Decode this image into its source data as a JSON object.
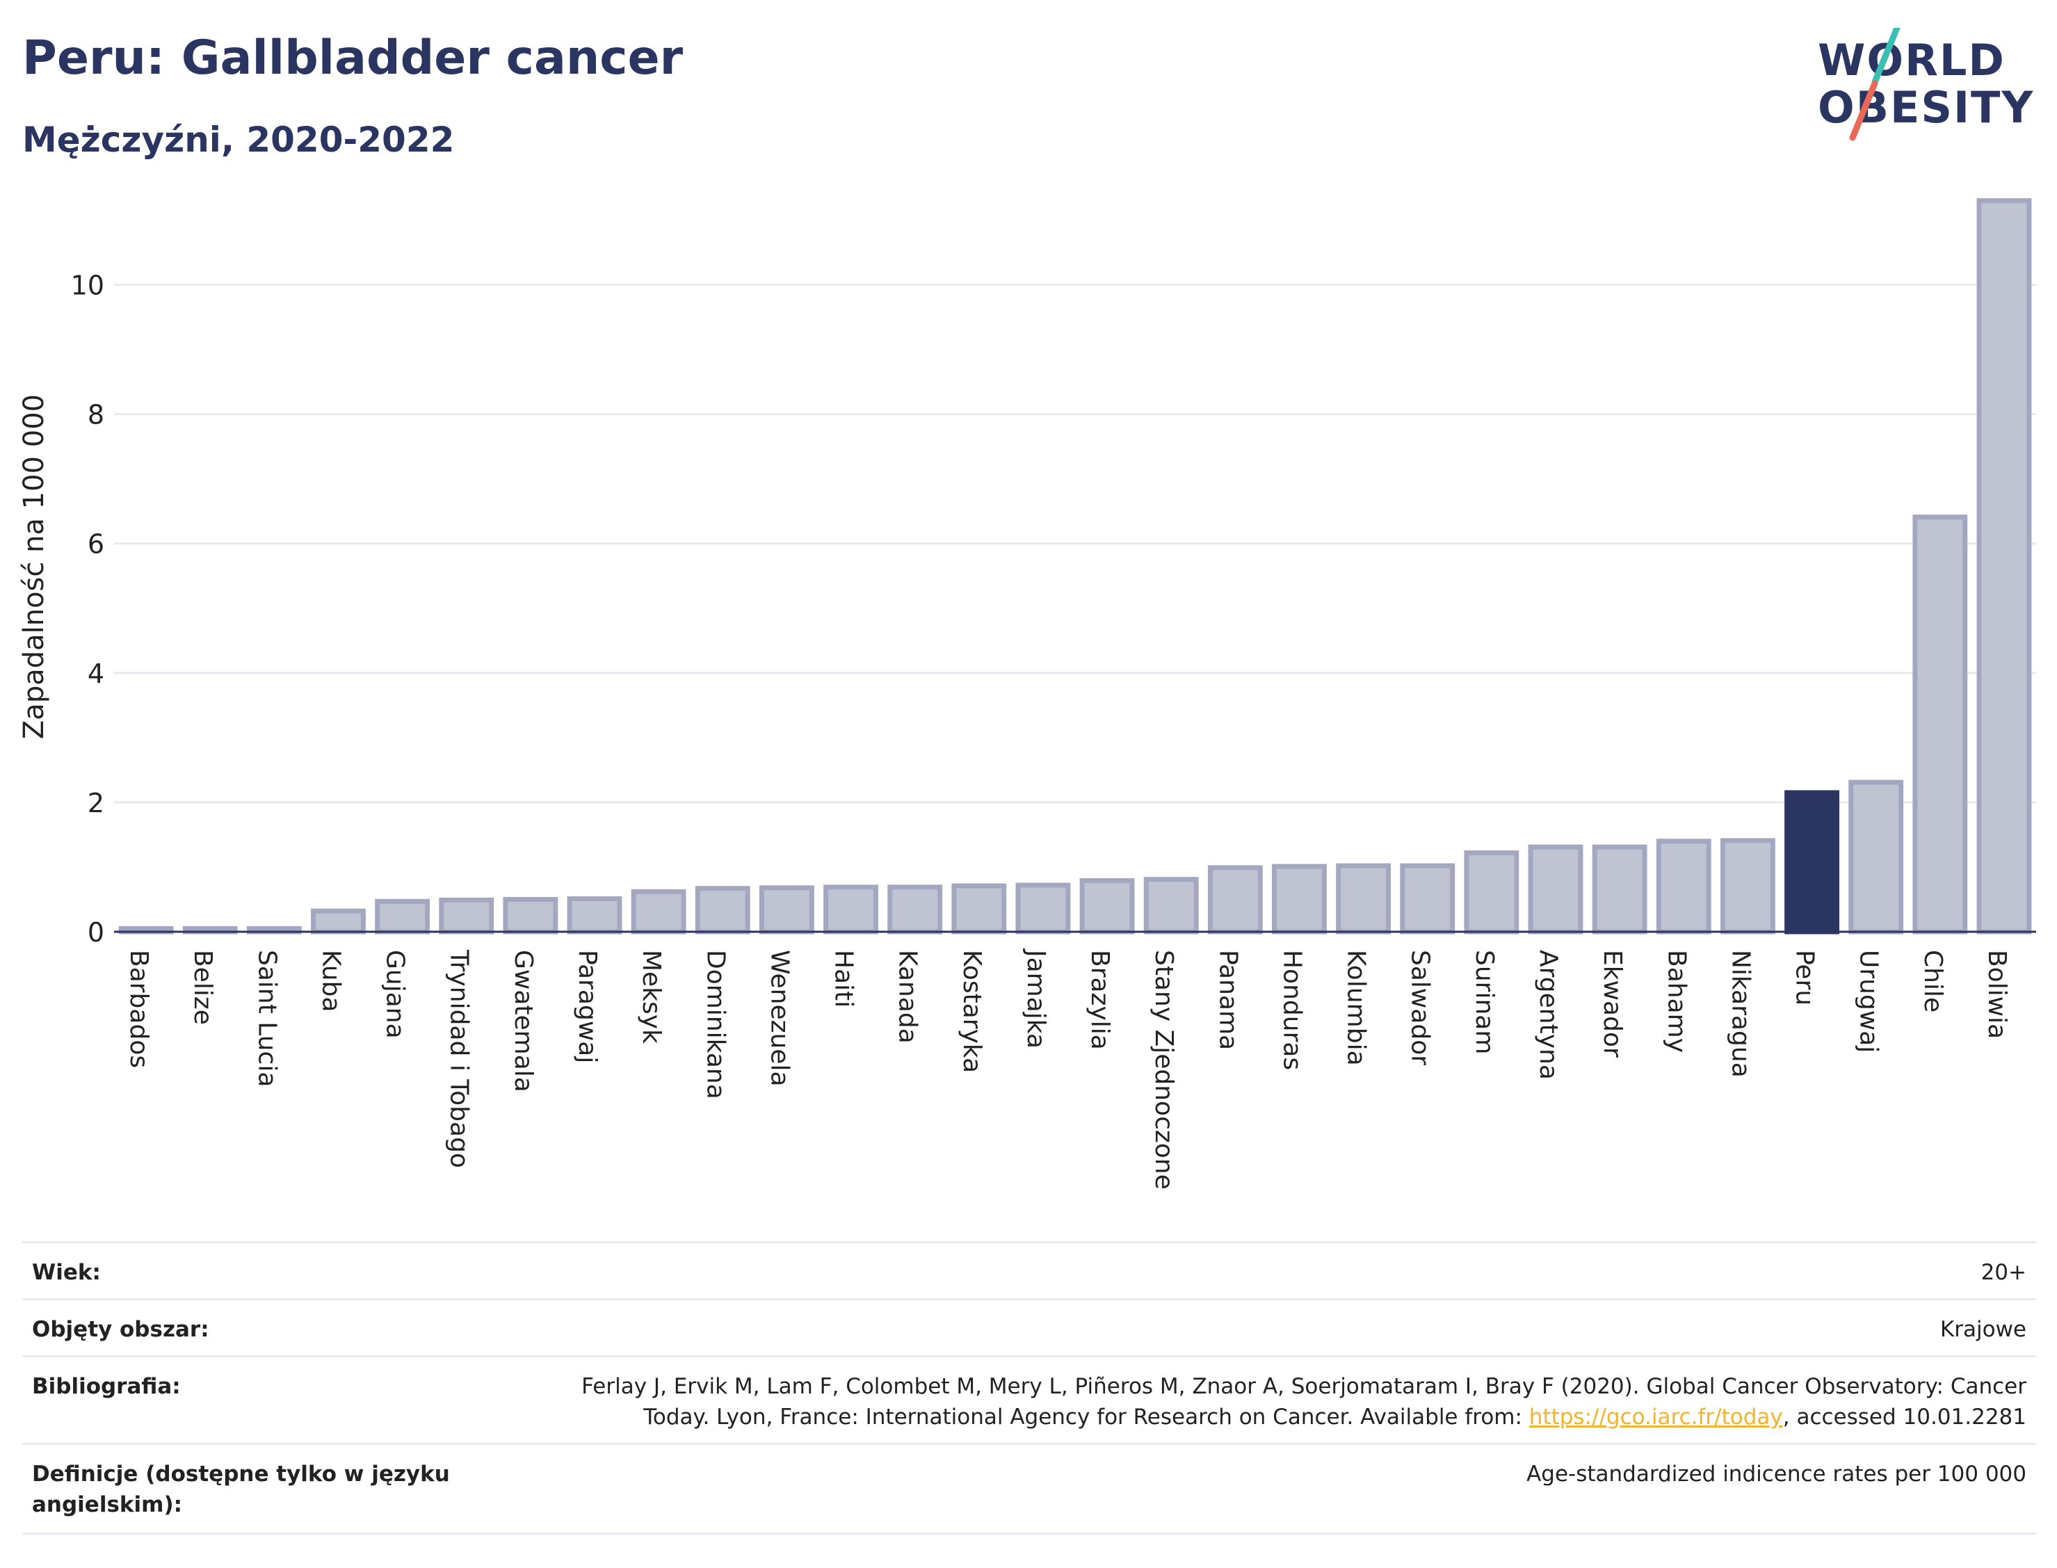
{
  "header": {
    "title": "Peru: Gallbladder cancer",
    "subtitle": "Mężczyźni, 2020-2022"
  },
  "logo": {
    "line1": "WORLD",
    "line2": "OBESITY"
  },
  "colors": {
    "bar": "#c0c4d2",
    "bar_border": "#a3a8c0",
    "highlight": "#2b3561",
    "accent_red": "#e8685a",
    "accent_teal": "#3bbfb5",
    "grid": "#e8e8ee"
  },
  "chart_data": {
    "type": "bar",
    "ylabel": "Zapadalność na 100 000",
    "xlabel": "",
    "ylim": [
      0,
      11.5
    ],
    "yticks": [
      0,
      2,
      4,
      6,
      8,
      10
    ],
    "highlight": "Peru",
    "categories": [
      "Barbados",
      "Belize",
      "Saint Lucia",
      "Kuba",
      "Gujana",
      "Trynidad i Tobago",
      "Gwatemala",
      "Paragwaj",
      "Meksyk",
      "Dominikana",
      "Wenezuela",
      "Haiti",
      "Kanada",
      "Kostaryka",
      "Jamajka",
      "Brazylia",
      "Stany Zjednoczone",
      "Panama",
      "Honduras",
      "Kolumbia",
      "Salwador",
      "Surinam",
      "Argentyna",
      "Ekwador",
      "Bahamy",
      "Nikaragua",
      "Peru",
      "Urugwaj",
      "Chile",
      "Boliwia"
    ],
    "values": [
      0.05,
      0.05,
      0.05,
      0.32,
      0.47,
      0.49,
      0.5,
      0.51,
      0.62,
      0.67,
      0.68,
      0.69,
      0.69,
      0.71,
      0.72,
      0.79,
      0.81,
      0.99,
      1.01,
      1.02,
      1.02,
      1.22,
      1.31,
      1.31,
      1.4,
      1.41,
      2.15,
      2.31,
      6.41,
      11.3
    ]
  },
  "info": {
    "age_label": "Wiek:",
    "age_value": "20+",
    "area_label": "Objęty obszar:",
    "area_value": "Krajowe",
    "bib_label": "Bibliografia:",
    "bib_line1": "Ferlay J, Ervik M, Lam F, Colombet M, Mery L, Piñeros M, Znaor A, Soerjomataram I, Bray F (2020). Global Cancer Observatory: Cancer",
    "bib_line2_pre": "Today. Lyon, France: International Agency for Research on Cancer. Available from: ",
    "bib_link": "https://gco.iarc.fr/today",
    "bib_line2_post": ", accessed 10.01.2281",
    "def_label": "Definicje (dostępne tylko w języku angielskim):",
    "def_value": "Age-standardized indicence rates per 100 000"
  }
}
